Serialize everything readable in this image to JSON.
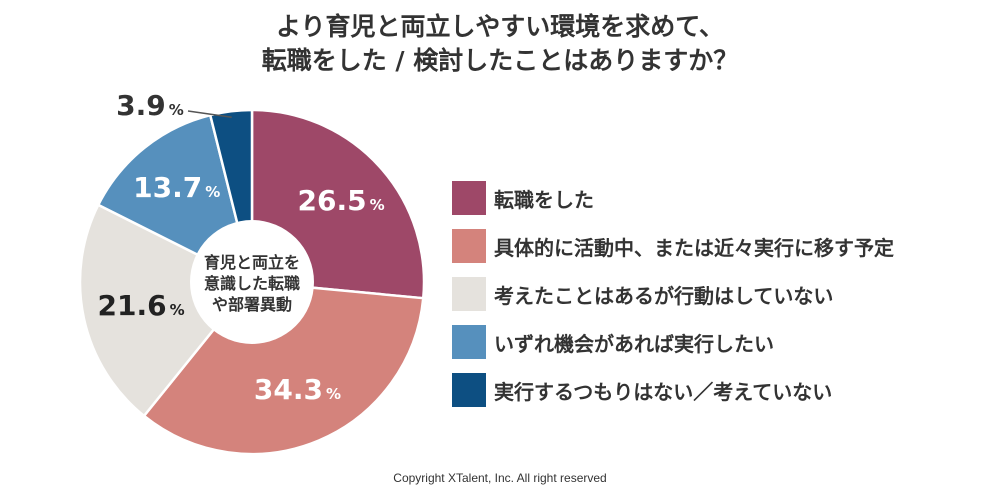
{
  "title_lines": [
    "より育児と両立しやすい環境を求めて、",
    "転職をした / 検討したことはありますか？"
  ],
  "center_label_lines": [
    "育児と両立を",
    "意識した転職",
    "や部署異動"
  ],
  "percent_sign": "%",
  "copyright": "Copyright XTalent, Inc. All right reserved",
  "chart_data": {
    "type": "pie",
    "donut": true,
    "start_angle_deg": 0,
    "direction": "clockwise",
    "slices": [
      {
        "label": "転職をした",
        "value": 26.5,
        "display": "26.5",
        "color": "#9e4868",
        "label_color": "#ffffff"
      },
      {
        "label": "具体的に活動中、または近々実行に移す予定",
        "value": 34.3,
        "display": "34.3",
        "color": "#d4837c",
        "label_color": "#ffffff"
      },
      {
        "label": "考えたことはあるが行動はしていない",
        "value": 21.6,
        "display": "21.6",
        "color": "#e5e2dd",
        "label_color": "#222222"
      },
      {
        "label": "いずれ機会があれば実行したい",
        "value": 13.7,
        "display": "13.7",
        "color": "#5690bd",
        "label_color": "#ffffff"
      },
      {
        "label": "実行するつもりはない／考えていない",
        "value": 3.9,
        "display": "3.9",
        "color": "#0d4f82",
        "label_color": "#333333"
      }
    ]
  }
}
